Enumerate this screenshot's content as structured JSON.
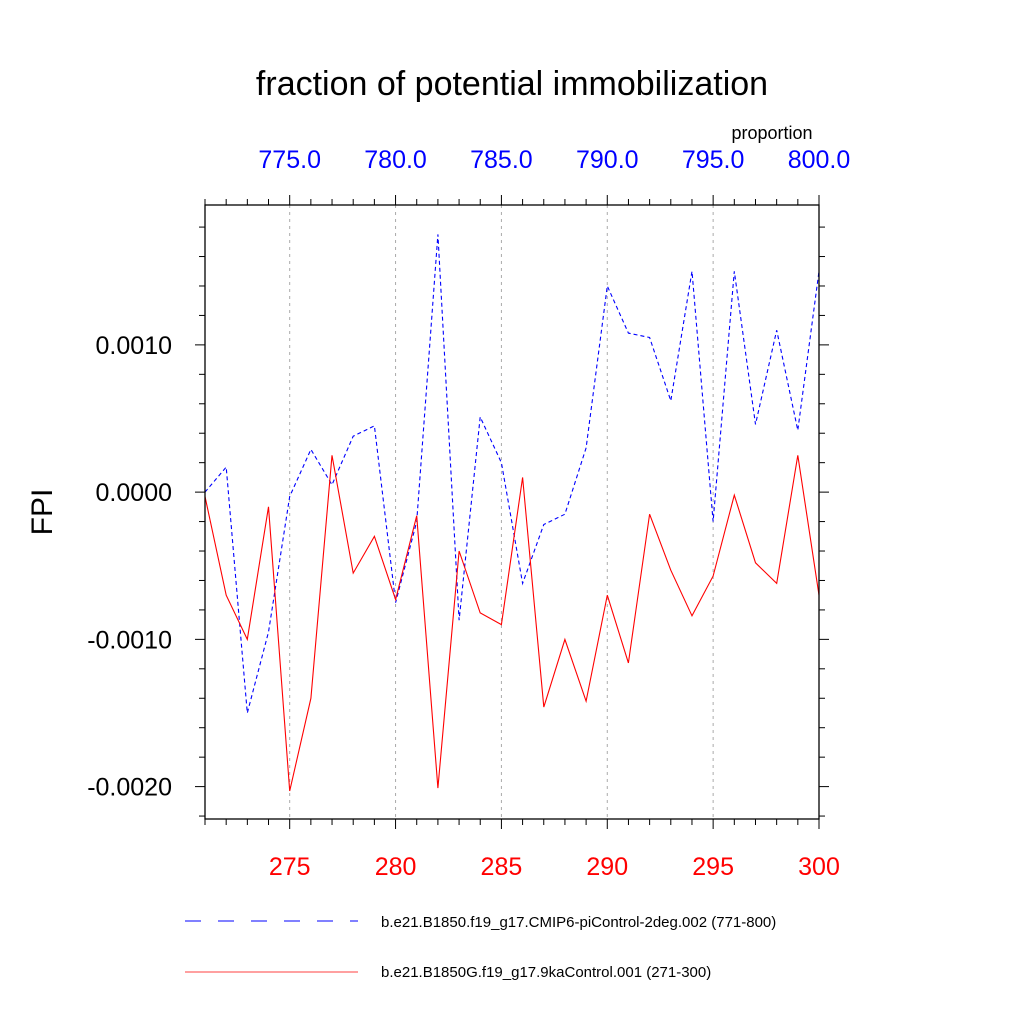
{
  "chart_data": {
    "type": "line",
    "title": "fraction of potential immobilization",
    "ylabel": "FPI",
    "top_axis_units": "proportion",
    "ylim": [
      -0.00222,
      0.00195
    ],
    "yticks": [
      0.001,
      0.0,
      -0.001,
      -0.002
    ],
    "ytick_labels": [
      "0.0010",
      "0.0000",
      "-0.0010",
      "-0.0020"
    ],
    "bottom_axis": {
      "xlim": [
        271,
        300
      ],
      "ticks": [
        275,
        280,
        285,
        290,
        295,
        300
      ],
      "tick_labels": [
        "275",
        "280",
        "285",
        "290",
        "295",
        "300"
      ],
      "color": "#ff0000"
    },
    "top_axis": {
      "xlim": [
        771,
        800
      ],
      "ticks": [
        775,
        780,
        785,
        790,
        795,
        800
      ],
      "tick_labels": [
        "775.0",
        "780.0",
        "785.0",
        "790.0",
        "795.0",
        "800.0"
      ],
      "color": "#0000ff"
    },
    "grid": "vertical-dotted",
    "series": [
      {
        "name": "b.e21.B1850.f19_g17.CMIP6-piControl-2deg.002 (771-800)",
        "axis": "top",
        "color": "#0000ff",
        "style": "dashed",
        "x": [
          771,
          772,
          773,
          774,
          775,
          776,
          777,
          778,
          779,
          780,
          781,
          782,
          783,
          784,
          785,
          786,
          787,
          788,
          789,
          790,
          791,
          792,
          793,
          794,
          795,
          796,
          797,
          798,
          799,
          800
        ],
        "values": [
          0.0,
          0.00017,
          -0.0015,
          -0.00095,
          -3e-05,
          0.00029,
          5e-05,
          0.00038,
          0.00045,
          -0.00075,
          -0.0002,
          0.00175,
          -0.00087,
          0.00051,
          0.0002,
          -0.00062,
          -0.00022,
          -0.00015,
          0.0003,
          0.0014,
          0.00108,
          0.00105,
          0.00062,
          0.0015,
          -0.0002,
          0.0015,
          0.00046,
          0.0011,
          0.00042,
          0.0015
        ]
      },
      {
        "name": "b.e21.B1850G.f19_g17.9kaControl.001 (271-300)",
        "axis": "bottom",
        "color": "#ff0000",
        "style": "solid",
        "x": [
          271,
          272,
          273,
          274,
          275,
          276,
          277,
          278,
          279,
          280,
          281,
          282,
          283,
          284,
          285,
          286,
          287,
          288,
          289,
          290,
          291,
          292,
          293,
          294,
          295,
          296,
          297,
          298,
          299,
          300
        ],
        "values": [
          -3e-05,
          -0.0007,
          -0.001,
          -0.0001,
          -0.00203,
          -0.0014,
          0.00025,
          -0.00055,
          -0.0003,
          -0.00073,
          -0.00016,
          -0.00201,
          -0.0004,
          -0.00082,
          -0.0009,
          0.0001,
          -0.00146,
          -0.001,
          -0.00142,
          -0.0007,
          -0.00116,
          -0.00015,
          -0.00053,
          -0.00084,
          -0.00057,
          -2e-05,
          -0.00048,
          -0.00062,
          0.00025,
          -0.0007
        ]
      }
    ]
  }
}
